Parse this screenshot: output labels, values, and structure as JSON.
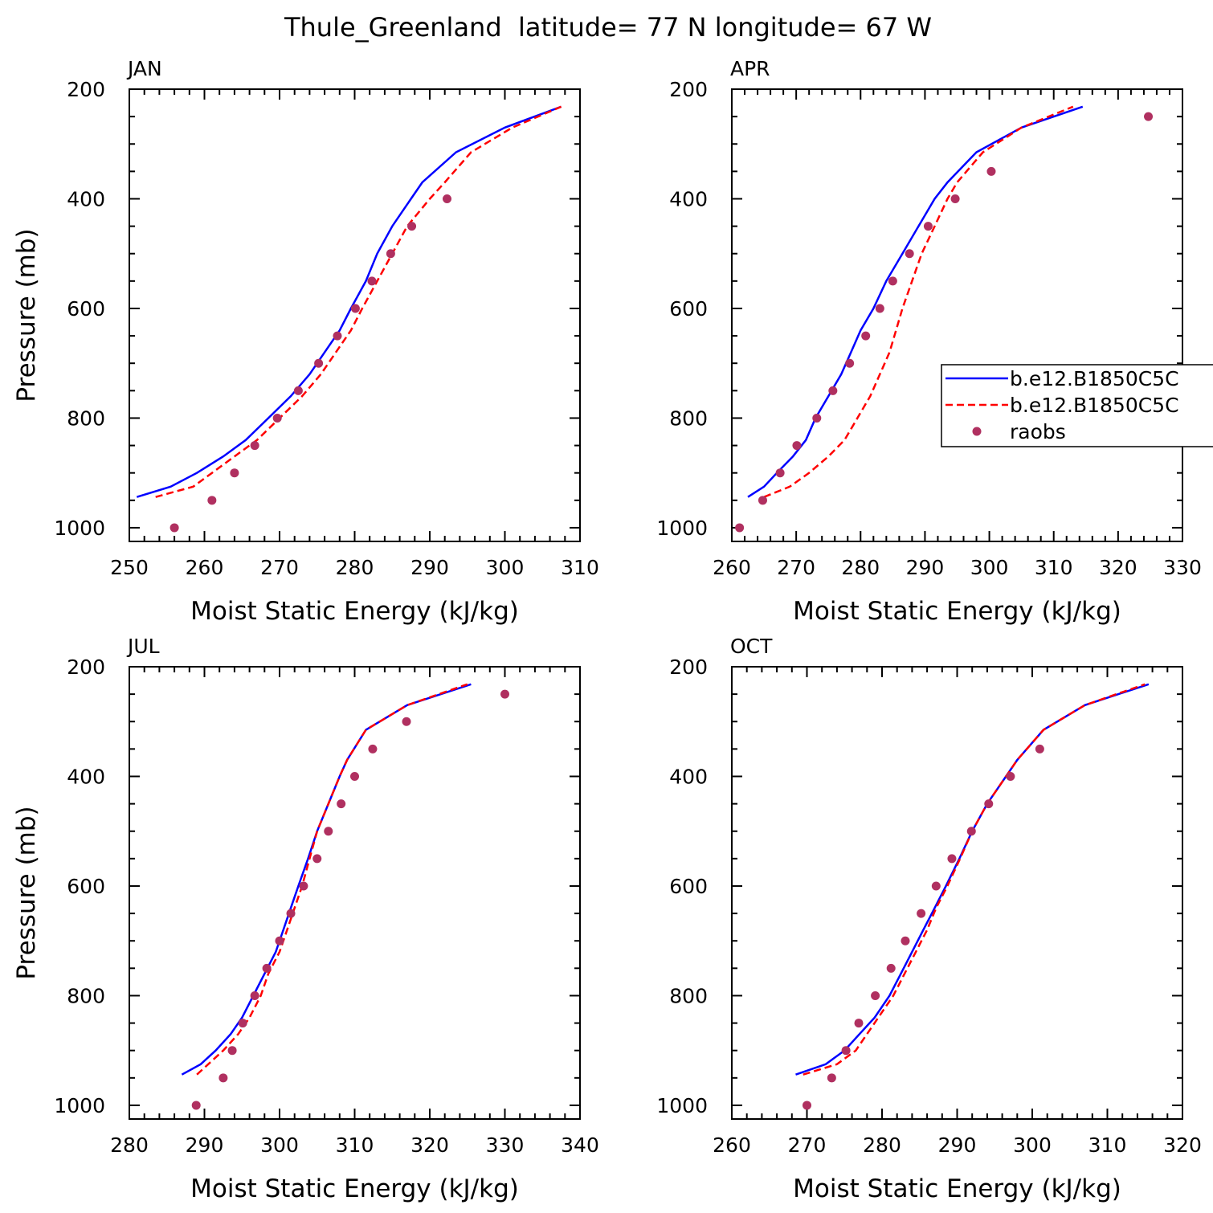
{
  "title": "Thule_Greenland  latitude= 77 N longitude= 67 W",
  "chart_data": [
    {
      "type": "line",
      "title": "JAN",
      "xlabel": "Moist Static Energy (kJ/kg)",
      "ylabel": "Pressure (mb)",
      "xlim": [
        250,
        310
      ],
      "xticks": [
        250,
        260,
        270,
        280,
        290,
        300,
        310
      ],
      "ylim": [
        1025,
        200
      ],
      "yticks": [
        200,
        400,
        600,
        800,
        1000
      ],
      "legend": null,
      "series": [
        {
          "name": "b.e12.B1850C5C",
          "color": "#0000ff",
          "dashed": false,
          "marker": false,
          "x": [
            251,
            255.5,
            259,
            262.5,
            265.5,
            268.5,
            271.5,
            274,
            276,
            278,
            279.5,
            281.5,
            283,
            285,
            287.5,
            289,
            293.5,
            300,
            307.5
          ],
          "values": [
            944,
            925,
            900,
            870,
            840,
            800,
            760,
            720,
            680,
            640,
            600,
            550,
            500,
            450,
            400,
            370,
            315,
            270,
            232
          ]
        },
        {
          "name": "b.e12.B1850C5C",
          "color": "#ff0000",
          "dashed": true,
          "marker": false,
          "x": [
            253.5,
            258.5,
            261,
            264,
            267,
            270,
            273,
            275.5,
            277.5,
            279.5,
            281,
            283,
            285,
            287,
            290,
            292,
            295.5,
            301,
            307.5
          ],
          "values": [
            944,
            925,
            900,
            870,
            840,
            800,
            760,
            720,
            680,
            640,
            600,
            550,
            500,
            450,
            400,
            370,
            315,
            270,
            232
          ]
        },
        {
          "name": "raobs",
          "color": "#b03060",
          "dashed": false,
          "marker": true,
          "x": [
            256,
            261,
            264,
            266.7,
            269.7,
            272.5,
            275.2,
            277.7,
            280.1,
            282.3,
            284.8,
            287.6,
            292.3
          ],
          "values": [
            1000,
            950,
            900,
            850,
            800,
            750,
            700,
            650,
            600,
            550,
            500,
            450,
            400
          ]
        }
      ]
    },
    {
      "type": "line",
      "title": "APR",
      "xlabel": "Moist Static Energy (kJ/kg)",
      "xlim": [
        260,
        330
      ],
      "xticks": [
        260,
        270,
        280,
        290,
        300,
        310,
        320,
        330
      ],
      "ylim": [
        1025,
        200
      ],
      "yticks": [
        200,
        400,
        600,
        800,
        1000
      ],
      "legend": "right",
      "series": [
        {
          "name": "b.e12.B1850C5C",
          "color": "#0000ff",
          "dashed": false,
          "marker": false,
          "x": [
            262.5,
            265,
            267,
            269.5,
            271.5,
            273,
            275,
            277,
            278.5,
            280,
            282,
            284,
            286.5,
            289,
            291.5,
            293.5,
            298,
            305,
            314.5
          ],
          "values": [
            944,
            925,
            900,
            870,
            840,
            800,
            760,
            720,
            680,
            640,
            600,
            550,
            500,
            450,
            400,
            370,
            315,
            270,
            232
          ]
        },
        {
          "name": "b.e12.B1850C5C",
          "color": "#ff0000",
          "dashed": true,
          "marker": false,
          "x": [
            265,
            269,
            272,
            275,
            277.5,
            279.5,
            281.5,
            283,
            284.5,
            285.5,
            286.5,
            288,
            289.5,
            291.5,
            293.5,
            295,
            299,
            305,
            313
          ],
          "values": [
            944,
            925,
            900,
            870,
            840,
            800,
            760,
            720,
            680,
            640,
            600,
            550,
            500,
            450,
            400,
            370,
            315,
            270,
            232
          ]
        },
        {
          "name": "raobs",
          "color": "#b03060",
          "dashed": false,
          "marker": true,
          "x": [
            261.2,
            264.8,
            267.5,
            270.1,
            273.2,
            275.7,
            278.3,
            280.8,
            283,
            285,
            287.6,
            290.5,
            294.7,
            300.3,
            324.7
          ],
          "values": [
            1000,
            950,
            900,
            850,
            800,
            750,
            700,
            650,
            600,
            550,
            500,
            450,
            400,
            350,
            250
          ]
        }
      ]
    },
    {
      "type": "line",
      "title": "JUL",
      "xlabel": "Moist Static Energy (kJ/kg)",
      "ylabel": "Pressure (mb)",
      "xlim": [
        280,
        340
      ],
      "xticks": [
        280,
        290,
        300,
        310,
        320,
        330,
        340
      ],
      "ylim": [
        1025,
        200
      ],
      "yticks": [
        200,
        400,
        600,
        800,
        1000
      ],
      "legend": null,
      "series": [
        {
          "name": "b.e12.B1850C5C",
          "color": "#0000ff",
          "dashed": false,
          "marker": false,
          "x": [
            287,
            289.5,
            291.5,
            293.5,
            295,
            296.5,
            298,
            299.5,
            300.5,
            301.5,
            302.5,
            303.8,
            305,
            306.5,
            308,
            309,
            311.5,
            317,
            325.5
          ],
          "values": [
            944,
            925,
            900,
            870,
            840,
            800,
            760,
            720,
            680,
            640,
            600,
            550,
            500,
            450,
            400,
            370,
            315,
            270,
            232
          ]
        },
        {
          "name": "b.e12.B1850C5C",
          "color": "#ff0000",
          "dashed": true,
          "marker": false,
          "x": [
            289,
            290.5,
            292.5,
            294.5,
            296,
            297.5,
            298.5,
            300,
            301,
            302,
            303,
            304,
            305,
            306.5,
            308,
            309,
            311.5,
            317,
            325
          ],
          "values": [
            944,
            925,
            900,
            870,
            840,
            800,
            760,
            720,
            680,
            640,
            600,
            550,
            500,
            450,
            400,
            370,
            315,
            270,
            232
          ]
        },
        {
          "name": "raobs",
          "color": "#b03060",
          "dashed": false,
          "marker": true,
          "x": [
            288.9,
            292.5,
            293.7,
            295.1,
            296.7,
            298.3,
            300,
            301.5,
            303.2,
            305,
            306.5,
            308.2,
            310,
            312.4,
            316.9,
            330
          ],
          "values": [
            1000,
            950,
            900,
            850,
            800,
            750,
            700,
            650,
            600,
            550,
            500,
            450,
            400,
            350,
            300,
            250
          ]
        }
      ]
    },
    {
      "type": "line",
      "title": "OCT",
      "xlabel": "Moist Static Energy (kJ/kg)",
      "xlim": [
        260,
        320
      ],
      "xticks": [
        260,
        270,
        280,
        290,
        300,
        310,
        320
      ],
      "ylim": [
        1025,
        200
      ],
      "yticks": [
        200,
        400,
        600,
        800,
        1000
      ],
      "legend": null,
      "series": [
        {
          "name": "b.e12.B1850C5C",
          "color": "#0000ff",
          "dashed": false,
          "marker": false,
          "x": [
            268.5,
            272.5,
            275,
            277,
            279,
            281,
            282.5,
            284,
            285.5,
            287,
            288.5,
            290.3,
            292,
            294,
            296.5,
            298,
            301.5,
            307,
            315.5
          ],
          "values": [
            944,
            925,
            900,
            870,
            840,
            800,
            760,
            720,
            680,
            640,
            600,
            550,
            500,
            450,
            400,
            370,
            315,
            270,
            232
          ]
        },
        {
          "name": "b.e12.B1850C5C",
          "color": "#ff0000",
          "dashed": true,
          "marker": false,
          "x": [
            269.5,
            274,
            276.5,
            278,
            279.5,
            281.5,
            283,
            284.5,
            286,
            287.2,
            288.7,
            290.4,
            292,
            294,
            296.5,
            298,
            301.5,
            307,
            315
          ],
          "values": [
            944,
            925,
            900,
            870,
            840,
            800,
            760,
            720,
            680,
            640,
            600,
            550,
            500,
            450,
            400,
            370,
            315,
            270,
            232
          ]
        },
        {
          "name": "raobs",
          "color": "#b03060",
          "dashed": false,
          "marker": true,
          "x": [
            270,
            273.3,
            275.2,
            276.9,
            279.1,
            281.2,
            283.1,
            285.2,
            287.2,
            289.3,
            291.9,
            294.2,
            297.1,
            301
          ],
          "values": [
            1000,
            950,
            900,
            850,
            800,
            750,
            700,
            650,
            600,
            550,
            500,
            450,
            400,
            350
          ]
        }
      ]
    }
  ]
}
